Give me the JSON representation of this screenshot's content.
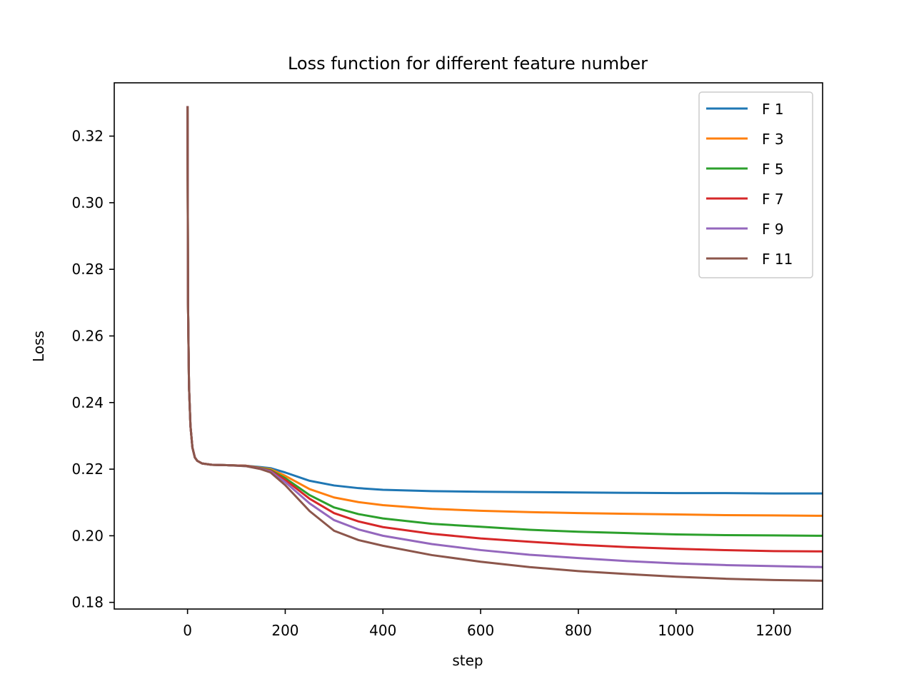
{
  "chart_data": {
    "type": "line",
    "title": "Loss function for different feature number",
    "xlabel": "step",
    "ylabel": "Loss",
    "xlim": [
      -150,
      1300
    ],
    "ylim": [
      0.178,
      0.336
    ],
    "xticks": [
      0,
      200,
      400,
      600,
      800,
      1000,
      1200
    ],
    "yticks": [
      0.18,
      0.2,
      0.22,
      0.24,
      0.26,
      0.28,
      0.3,
      0.32
    ],
    "grid": false,
    "legend_position": "top-right",
    "x": [
      0,
      1,
      3,
      6,
      10,
      15,
      20,
      30,
      50,
      80,
      120,
      150,
      170,
      200,
      250,
      300,
      350,
      400,
      500,
      600,
      700,
      800,
      900,
      1000,
      1100,
      1200,
      1300
    ],
    "series": [
      {
        "name": "F 1",
        "color": "#1f77b4",
        "values": [
          0.329,
          0.27,
          0.245,
          0.233,
          0.2265,
          0.2235,
          0.2225,
          0.2217,
          0.2213,
          0.2212,
          0.221,
          0.2206,
          0.2203,
          0.219,
          0.2165,
          0.2151,
          0.2143,
          0.2138,
          0.2134,
          0.2132,
          0.2131,
          0.213,
          0.2129,
          0.2128,
          0.2128,
          0.2127,
          0.2127
        ]
      },
      {
        "name": "F 3",
        "color": "#ff7f0e",
        "values": [
          0.329,
          0.27,
          0.245,
          0.233,
          0.2265,
          0.2235,
          0.2225,
          0.2217,
          0.2213,
          0.2212,
          0.221,
          0.2204,
          0.22,
          0.218,
          0.214,
          0.2115,
          0.2101,
          0.2092,
          0.2081,
          0.2075,
          0.2071,
          0.2068,
          0.2066,
          0.2064,
          0.2062,
          0.2061,
          0.206
        ]
      },
      {
        "name": "F 5",
        "color": "#2ca02c",
        "values": [
          0.329,
          0.27,
          0.245,
          0.233,
          0.2265,
          0.2235,
          0.2225,
          0.2217,
          0.2213,
          0.2212,
          0.221,
          0.2203,
          0.2197,
          0.2173,
          0.2122,
          0.2085,
          0.2065,
          0.2052,
          0.2036,
          0.2027,
          0.2018,
          0.2012,
          0.2008,
          0.2004,
          0.2002,
          0.2001,
          0.2
        ]
      },
      {
        "name": "F 7",
        "color": "#d62728",
        "values": [
          0.329,
          0.27,
          0.245,
          0.233,
          0.2265,
          0.2235,
          0.2225,
          0.2217,
          0.2213,
          0.2212,
          0.221,
          0.2202,
          0.2195,
          0.2168,
          0.2111,
          0.2068,
          0.2043,
          0.2026,
          0.2006,
          0.1992,
          0.1982,
          0.1973,
          0.1966,
          0.1961,
          0.1957,
          0.1954,
          0.1953
        ]
      },
      {
        "name": "F 9",
        "color": "#9467bd",
        "values": [
          0.329,
          0.27,
          0.245,
          0.233,
          0.2265,
          0.2235,
          0.2225,
          0.2217,
          0.2213,
          0.2212,
          0.2209,
          0.2201,
          0.2193,
          0.2161,
          0.2097,
          0.2047,
          0.2019,
          0.2,
          0.1975,
          0.1957,
          0.1943,
          0.1933,
          0.1924,
          0.1917,
          0.1912,
          0.1909,
          0.1906
        ]
      },
      {
        "name": "F 11",
        "color": "#8c564b",
        "values": [
          0.329,
          0.27,
          0.245,
          0.233,
          0.2265,
          0.2235,
          0.2225,
          0.2217,
          0.2213,
          0.2212,
          0.2209,
          0.22,
          0.219,
          0.2152,
          0.2074,
          0.2015,
          0.1987,
          0.197,
          0.1942,
          0.1922,
          0.1906,
          0.1894,
          0.1885,
          0.1877,
          0.1871,
          0.1867,
          0.1865
        ]
      }
    ]
  }
}
